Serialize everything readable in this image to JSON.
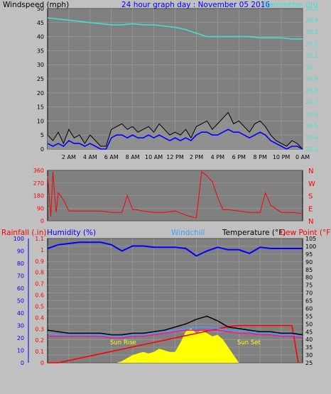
{
  "chart_data": [
    {
      "type": "line",
      "title": "24 hour graph day : November 05 2016",
      "left_label": "Windspeed (mph)",
      "right_label": "Barometer (in)",
      "x_ticks": [
        "2 AM",
        "4 AM",
        "6 AM",
        "8 AM",
        "10 AM",
        "12 PM",
        "2 PM",
        "4 PM",
        "6 PM",
        "8 PM",
        "10 PM",
        "0 AM"
      ],
      "ylim_left": [
        0,
        50
      ],
      "y_ticks_left": [
        "0",
        "5",
        "10",
        "15",
        "20",
        "25",
        "30",
        "35",
        "40",
        "45",
        "50"
      ],
      "ylim_right": [
        29.3,
        30.5
      ],
      "y_ticks_right": [
        "29.3",
        "29.4",
        "29.5",
        "29.6",
        "29.7",
        "29.8",
        "29.9",
        "30",
        "30.1",
        "30.2",
        "30.3",
        "30.4",
        "30.5"
      ],
      "grid": true,
      "series": [
        {
          "name": "Barometer (in)",
          "color": "#40e0d0",
          "axis": "right",
          "x": [
            0,
            1,
            2,
            3,
            4,
            5,
            6,
            7,
            8,
            9,
            10,
            11,
            12,
            13,
            14,
            15,
            16,
            17,
            18,
            19,
            20,
            21,
            22,
            23,
            24
          ],
          "values": [
            30.42,
            30.41,
            30.4,
            30.39,
            30.38,
            30.37,
            30.36,
            30.36,
            30.37,
            30.36,
            30.36,
            30.35,
            30.34,
            30.32,
            30.29,
            30.26,
            30.26,
            30.26,
            30.26,
            30.26,
            30.25,
            30.25,
            30.25,
            30.24,
            30.24
          ]
        },
        {
          "name": "Wind gust",
          "color": "#000000",
          "axis": "left",
          "x": [
            0,
            0.5,
            1,
            1.5,
            2,
            2.5,
            3,
            3.5,
            4,
            4.5,
            5,
            5.5,
            6,
            6.5,
            7,
            7.5,
            8,
            8.5,
            9,
            9.5,
            10,
            10.5,
            11,
            11.5,
            12,
            12.5,
            13,
            13.5,
            14,
            14.5,
            15,
            15.5,
            16,
            16.5,
            17,
            17.5,
            18,
            18.5,
            19,
            19.5,
            20,
            20.5,
            21,
            21.5,
            22,
            22.5,
            23,
            23.5,
            24
          ],
          "values": [
            5,
            3,
            6,
            2,
            7,
            4,
            5,
            2,
            5,
            3,
            1,
            1,
            7,
            8,
            9,
            7,
            8,
            6,
            7,
            8,
            6,
            9,
            7,
            5,
            6,
            5,
            7,
            4,
            8,
            9,
            10,
            7,
            9,
            11,
            13,
            9,
            10,
            8,
            6,
            9,
            10,
            8,
            5,
            3,
            2,
            1,
            3,
            2,
            0
          ]
        },
        {
          "name": "Wind speed",
          "color": "#0000ff",
          "axis": "left",
          "x": [
            0,
            0.5,
            1,
            1.5,
            2,
            2.5,
            3,
            3.5,
            4,
            4.5,
            5,
            5.5,
            6,
            6.5,
            7,
            7.5,
            8,
            8.5,
            9,
            9.5,
            10,
            10.5,
            11,
            11.5,
            12,
            12.5,
            13,
            13.5,
            14,
            14.5,
            15,
            15.5,
            16,
            16.5,
            17,
            17.5,
            18,
            18.5,
            19,
            19.5,
            20,
            20.5,
            21,
            21.5,
            22,
            22.5,
            23,
            23.5,
            24
          ],
          "values": [
            2,
            1,
            2,
            1,
            3,
            2,
            2,
            1,
            2,
            1,
            0,
            0,
            4,
            5,
            5,
            4,
            5,
            4,
            4,
            5,
            4,
            5,
            4,
            3,
            4,
            3,
            4,
            3,
            5,
            6,
            6,
            5,
            5,
            6,
            7,
            6,
            6,
            5,
            4,
            5,
            6,
            5,
            3,
            2,
            1,
            0,
            1,
            1,
            0
          ]
        }
      ]
    },
    {
      "type": "line",
      "title": "",
      "left_ticks": [
        "0",
        "90",
        "180",
        "270",
        "360"
      ],
      "right_ticks": [
        "N",
        "W",
        "S",
        "E",
        "N"
      ],
      "ylim": [
        0,
        360
      ],
      "x_ticks": [],
      "series": [
        {
          "name": "Wind direction",
          "color": "#ff0000",
          "x": [
            0,
            0.3,
            0.5,
            0.8,
            1,
            1.5,
            2,
            3,
            4,
            5,
            6,
            7,
            7.5,
            8,
            8.3,
            9,
            10,
            11,
            12,
            13,
            14,
            14.5,
            15,
            15.5,
            16,
            16.5,
            17,
            18,
            19,
            20,
            20.5,
            21,
            22,
            23,
            24
          ],
          "values": [
            320,
            30,
            350,
            60,
            200,
            150,
            70,
            70,
            70,
            70,
            60,
            60,
            180,
            80,
            80,
            70,
            60,
            60,
            70,
            40,
            20,
            350,
            320,
            280,
            170,
            80,
            80,
            70,
            60,
            60,
            200,
            110,
            60,
            60,
            50
          ]
        }
      ]
    },
    {
      "type": "line",
      "title": "",
      "labels": [
        "Rainfall (.in)",
        "Humidity (%)",
        "Windchill",
        "Temperature (°F)",
        "Dew Point (°F)"
      ],
      "y_ticks_humidity": [
        "0",
        "10",
        "20",
        "30",
        "40",
        "50",
        "60",
        "70",
        "80",
        "90",
        "100"
      ],
      "y_ticks_rain": [
        "0",
        "0.1",
        "0.2",
        "0.3",
        "0.4",
        "0.5",
        "0.6",
        "0.7",
        "0.8",
        "0.9",
        "1",
        "1.1"
      ],
      "y_ticks_temp": [
        "25",
        "30",
        "35",
        "40",
        "45",
        "50",
        "55",
        "60",
        "65",
        "70",
        "75",
        "80",
        "85",
        "90",
        "95",
        "100",
        "105"
      ],
      "ylim_temp": [
        25,
        105
      ],
      "ylim_humidity": [
        0,
        100
      ],
      "ylim_rain": [
        0,
        1.1
      ],
      "annotations": [
        "Sun Rise",
        "Sun Set"
      ],
      "grid": true,
      "series": [
        {
          "name": "Humidity (%)",
          "color": "#0000ff",
          "axis": "humidity",
          "x": [
            0,
            1,
            2,
            3,
            4,
            5,
            6,
            7,
            8,
            9,
            10,
            11,
            12,
            13,
            14,
            15,
            16,
            17,
            18,
            19,
            20,
            21,
            22,
            23,
            24
          ],
          "values": [
            92,
            95,
            96,
            97,
            97,
            97,
            95,
            90,
            94,
            94,
            93,
            93,
            93,
            92,
            86,
            90,
            93,
            91,
            91,
            88,
            93,
            92,
            92,
            92,
            92
          ]
        },
        {
          "name": "Temperature (°F)",
          "color": "#000000",
          "axis": "temp",
          "x": [
            0,
            1,
            2,
            3,
            4,
            5,
            6,
            7,
            8,
            9,
            10,
            11,
            12,
            13,
            14,
            15,
            16,
            17,
            18,
            19,
            20,
            21,
            22,
            23,
            24
          ],
          "values": [
            46,
            45,
            44,
            44,
            44,
            44,
            43,
            43,
            44,
            44,
            45,
            46,
            48,
            50,
            53,
            55,
            52,
            48,
            47,
            46,
            45,
            45,
            44,
            44,
            43
          ]
        },
        {
          "name": "Windchill",
          "color": "#40a0ff",
          "axis": "temp",
          "x": [
            0,
            1,
            2,
            3,
            4,
            5,
            6,
            7,
            8,
            9,
            10,
            11,
            12,
            13,
            14,
            15,
            16,
            17,
            18,
            19,
            20,
            21,
            22,
            23,
            24
          ],
          "values": [
            44,
            43,
            43,
            43,
            43,
            43,
            42,
            42,
            43,
            43,
            44,
            45,
            46,
            47,
            48,
            48,
            47,
            46,
            46,
            45,
            44,
            44,
            43,
            43,
            42
          ]
        },
        {
          "name": "Dew Point (°F)",
          "color": "#ff1493",
          "axis": "temp",
          "x": [
            0,
            1,
            2,
            3,
            4,
            5,
            6,
            7,
            8,
            9,
            10,
            11,
            12,
            13,
            14,
            15,
            16,
            17,
            18,
            19,
            20,
            21,
            22,
            23,
            24
          ],
          "values": [
            42,
            42,
            42,
            42,
            42,
            42,
            41,
            41,
            42,
            42,
            43,
            44,
            45,
            46,
            46,
            46,
            46,
            45,
            44,
            44,
            43,
            43,
            42,
            42,
            41
          ]
        },
        {
          "name": "Rainfall (.in)",
          "color": "#ff0000",
          "axis": "rain",
          "x": [
            0,
            1,
            1.5,
            2,
            3,
            4,
            5,
            6,
            7,
            8,
            9,
            10,
            11,
            12,
            13,
            14,
            15,
            16,
            17,
            18,
            19,
            20,
            21,
            22,
            23,
            23.6
          ],
          "values": [
            0,
            0,
            0.01,
            0.02,
            0.04,
            0.06,
            0.08,
            0.1,
            0.12,
            0.14,
            0.16,
            0.18,
            0.2,
            0.22,
            0.24,
            0.26,
            0.28,
            0.3,
            0.32,
            0.33,
            0.33,
            0.33,
            0.33,
            0.33,
            0.33,
            0
          ]
        },
        {
          "name": "Solar",
          "color": "#ffff00",
          "axis": "temp",
          "x": [
            0,
            6.5,
            7,
            7.5,
            8,
            8.5,
            9,
            9.5,
            10,
            10.5,
            11,
            11.5,
            12,
            12.5,
            13,
            13.5,
            14,
            14.5,
            15,
            15.5,
            16,
            16.5,
            17,
            17.5,
            18,
            24
          ],
          "values": [
            25,
            25,
            26,
            28,
            30,
            31,
            32,
            31,
            32,
            34,
            33,
            32,
            32,
            38,
            45,
            47,
            44,
            46,
            44,
            42,
            43,
            40,
            35,
            30,
            25,
            25
          ]
        }
      ]
    }
  ]
}
